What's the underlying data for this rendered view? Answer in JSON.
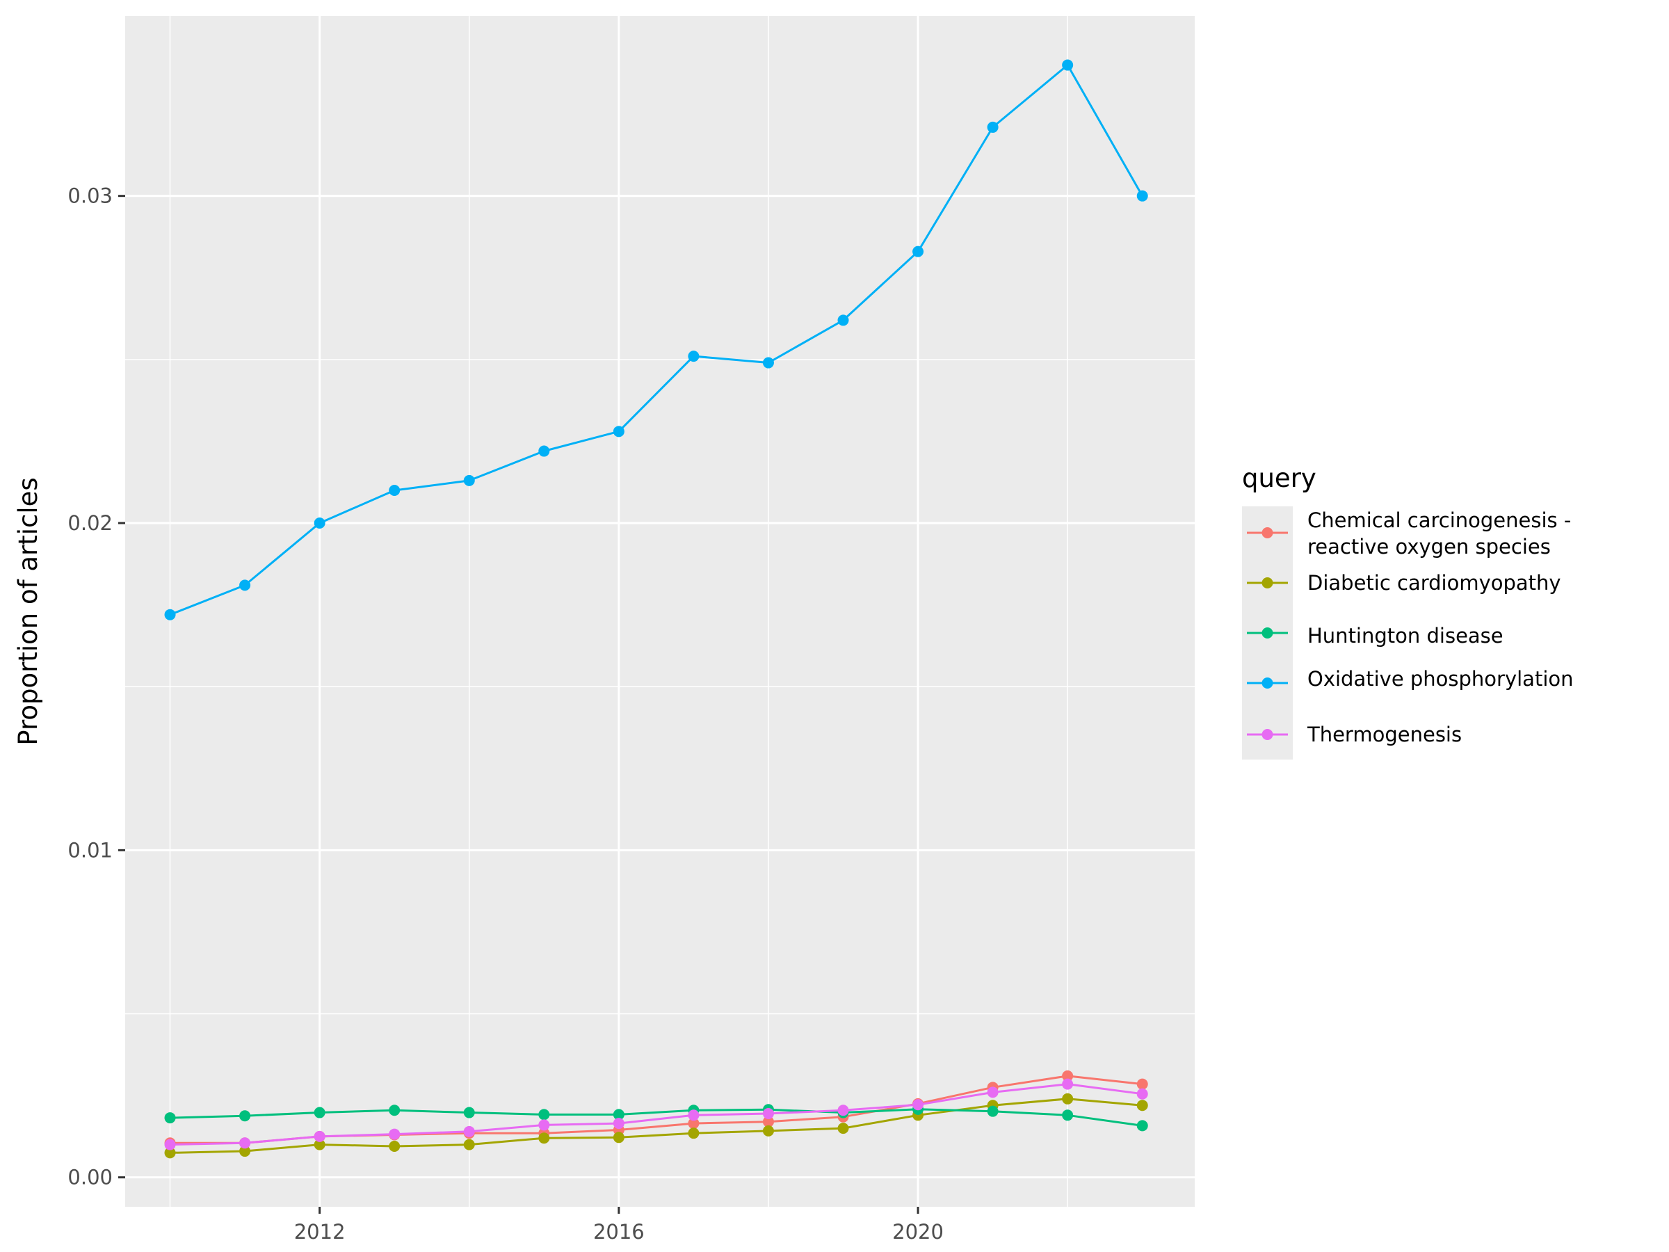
{
  "chart_data": {
    "type": "line",
    "title": "",
    "xlabel": "",
    "ylabel": "Proportion of articles",
    "x": [
      2010,
      2011,
      2012,
      2013,
      2014,
      2015,
      2016,
      2017,
      2018,
      2019,
      2020,
      2021,
      2022,
      2023
    ],
    "xlim": [
      2009.4,
      2023.7
    ],
    "ylim": [
      -0.0009,
      0.0355
    ],
    "x_ticks": [
      2012,
      2016,
      2020
    ],
    "x_tick_labels": [
      "2012",
      "2016",
      "2020"
    ],
    "y_ticks": [
      0.0,
      0.01,
      0.02,
      0.03
    ],
    "y_tick_labels": [
      "0.00",
      "0.01",
      "0.02",
      "0.03"
    ],
    "x_minor_ticks": [
      2010,
      2014,
      2018,
      2022
    ],
    "y_minor_ticks": [
      0.005,
      0.015,
      0.025
    ],
    "grid": true,
    "legend": {
      "title": "query",
      "position": "right",
      "items": [
        {
          "label": "Chemical carcinogenesis -",
          "label2": " reactive oxygen species",
          "color": "#F8766D"
        },
        {
          "label": "Diabetic cardiomyopathy",
          "label2": "",
          "color": "#A3A500"
        },
        {
          "label": "Huntington disease",
          "label2": "",
          "color": "#00BF7D"
        },
        {
          "label": "Oxidative phosphorylation",
          "label2": "",
          "color": "#00B0F6"
        },
        {
          "label": "Thermogenesis",
          "label2": "",
          "color": "#E76BF3"
        }
      ]
    },
    "series": [
      {
        "name": "Chemical carcinogenesis - reactive oxygen species",
        "color": "#F8766D",
        "values": [
          0.00105,
          0.00105,
          0.00125,
          0.0013,
          0.00135,
          0.00135,
          0.00145,
          0.00165,
          0.0017,
          0.00185,
          0.00225,
          0.00275,
          0.0031,
          0.00285
        ]
      },
      {
        "name": "Diabetic cardiomyopathy",
        "color": "#A3A500",
        "values": [
          0.00075,
          0.0008,
          0.001,
          0.00095,
          0.001,
          0.0012,
          0.00122,
          0.00135,
          0.00142,
          0.0015,
          0.0019,
          0.0022,
          0.0024,
          0.0022
        ]
      },
      {
        "name": "Huntington disease",
        "color": "#00BF7D",
        "values": [
          0.00182,
          0.00188,
          0.00198,
          0.00205,
          0.00198,
          0.00192,
          0.00192,
          0.00205,
          0.00207,
          0.00198,
          0.00208,
          0.00202,
          0.0019,
          0.00158
        ]
      },
      {
        "name": "Oxidative phosphorylation",
        "color": "#00B0F6",
        "values": [
          0.0172,
          0.0181,
          0.02,
          0.021,
          0.0213,
          0.0222,
          0.0228,
          0.0251,
          0.0249,
          0.0262,
          0.0283,
          0.0321,
          0.034,
          0.03
        ]
      },
      {
        "name": "Thermogenesis",
        "color": "#E76BF3",
        "values": [
          0.001,
          0.00105,
          0.00125,
          0.00132,
          0.0014,
          0.0016,
          0.00165,
          0.0019,
          0.00195,
          0.00205,
          0.00222,
          0.0026,
          0.00285,
          0.00255
        ]
      }
    ]
  }
}
